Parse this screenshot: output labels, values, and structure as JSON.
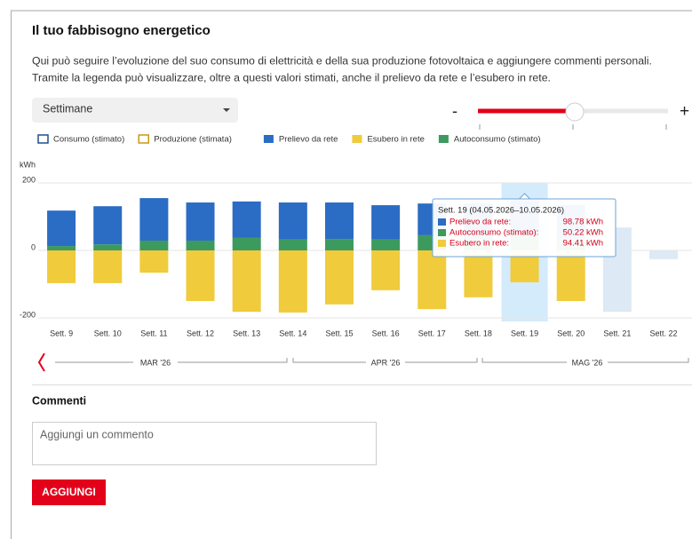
{
  "header": {
    "title": "Il tuo fabbisogno energetico",
    "intro": [
      "Qui può seguire l’evoluzione del suo consumo di elettricità e della sua produzione fotovoltaica e aggiungere commenti personali.",
      "Tramite la legenda può visualizzare, oltre a questi valori stimati, anche il prelievo da rete e l’esubero in rete."
    ]
  },
  "controls": {
    "period": "Settimane",
    "zoom_out": "-",
    "zoom_in": "+"
  },
  "chart_data": {
    "type": "bar",
    "y_label": "kWh",
    "categories": [
      "Sett. 9",
      "Sett. 10",
      "Sett. 11",
      "Sett. 12",
      "Sett. 13",
      "Sett. 14",
      "Sett. 15",
      "Sett. 16",
      "Sett. 17",
      "Sett. 18",
      "Sett. 19",
      "Sett. 20",
      "Sett. 21",
      "Sett. 22"
    ],
    "ylim": [
      -200,
      200
    ],
    "yticks": [
      200,
      0,
      -200
    ],
    "grid": true,
    "selected": 10,
    "legend_extra": [
      {
        "name": "Consumo (stimato)",
        "color": "#1f4f8f"
      },
      {
        "name": "Produzione (stimata)",
        "color": "#c99a12"
      }
    ],
    "series": [
      {
        "name": "Prelievo da rete",
        "color": "#2b6cc4",
        "values": [
          105,
          113,
          126,
          113,
          108,
          110,
          108,
          102,
          94,
          99,
          98.78,
          100,
          null,
          null
        ],
        "value_labels": [
          null,
          null,
          null,
          null,
          null,
          null,
          null,
          null,
          null,
          null,
          "98.78 kWh",
          null,
          null,
          null
        ]
      },
      {
        "name": "Esubero in rete",
        "color": "#f0cb3b",
        "values": [
          97,
          97,
          66,
          150,
          182,
          184,
          160,
          118,
          174,
          139,
          94.41,
          150,
          null,
          null
        ],
        "value_labels": [
          null,
          null,
          null,
          null,
          null,
          null,
          null,
          null,
          null,
          null,
          "94.41 kWh",
          null,
          null,
          null
        ]
      },
      {
        "name": "Autoconsumo (stimato)",
        "color": "#3d9a5f",
        "values": [
          13,
          18,
          29,
          29,
          37,
          32,
          34,
          32,
          45,
          40,
          50.22,
          35,
          null,
          null
        ],
        "value_labels": [
          null,
          null,
          null,
          null,
          null,
          null,
          null,
          null,
          null,
          null,
          "50.22 kWh",
          null,
          null,
          null
        ]
      }
    ],
    "forecast": {
      "color": "#dde9f4",
      "above": [
        null,
        null,
        null,
        null,
        null,
        null,
        null,
        null,
        null,
        null,
        null,
        null,
        68,
        0
      ],
      "below": [
        null,
        null,
        null,
        null,
        null,
        null,
        null,
        null,
        null,
        null,
        null,
        null,
        182,
        26
      ]
    },
    "tooltip": {
      "title": "Sett. 19 (04.05.2026–10.05.2026)",
      "rows": [
        "Prelievo da rete:",
        "Autoconsumo (stimato):",
        "Esubero in rete:"
      ]
    },
    "months": [
      "MAR '26",
      "APR '26",
      "MAG '26"
    ]
  },
  "comments": {
    "title": "Commenti",
    "placeholder": "Aggiungi un commento",
    "button": "AGGIUNGI"
  }
}
